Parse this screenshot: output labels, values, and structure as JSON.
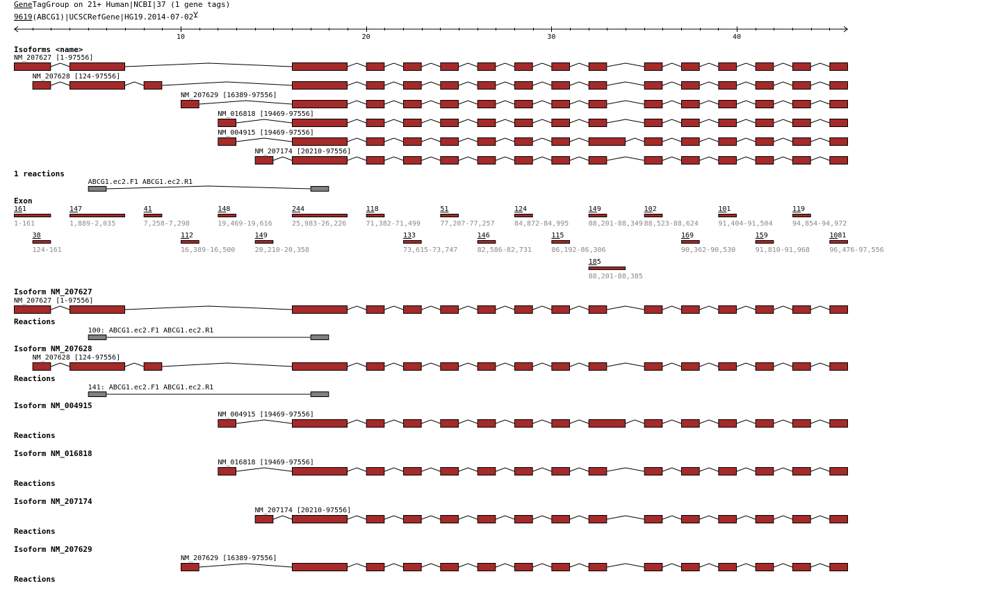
{
  "header": {
    "line1_link": "Gene",
    "line1_rest": "TagGroup on 21+ Human|NCBI|37 (1 gene tags)",
    "line2_link": "9619",
    "line2_rest": "(ABCG1)|UCSCRefGene|HG19.2014-07-02",
    "filter_icon": "filter-icon"
  },
  "ruler": {
    "slots": 45,
    "labels": [
      "10",
      "20",
      "30",
      "40"
    ],
    "label_positions": [
      10,
      20,
      30,
      40
    ]
  },
  "colors": {
    "exon": "#a52a2a",
    "reaction": "#808080",
    "range_text": "#888888"
  },
  "exons": [
    {
      "id": "e1",
      "size": "161",
      "range": "1-161",
      "slot": 0,
      "span": 2,
      "row": 0
    },
    {
      "id": "e2",
      "size": "38",
      "range": "124-161",
      "slot": 1,
      "span": 1,
      "row": 1
    },
    {
      "id": "e3",
      "size": "147",
      "range": "1,889-2,035",
      "slot": 3,
      "span": 3,
      "row": 0
    },
    {
      "id": "e4",
      "size": "41",
      "range": "7,258-7,298",
      "slot": 7,
      "span": 1,
      "row": 0
    },
    {
      "id": "e5",
      "size": "112",
      "range": "16,389-16,500",
      "slot": 9,
      "span": 1,
      "row": 1
    },
    {
      "id": "e6",
      "size": "148",
      "range": "19,469-19,616",
      "slot": 11,
      "span": 1,
      "row": 0
    },
    {
      "id": "e7",
      "size": "149",
      "range": "20,210-20,358",
      "slot": 13,
      "span": 1,
      "row": 1
    },
    {
      "id": "e8",
      "size": "244",
      "range": "25,983-26,226",
      "slot": 15,
      "span": 3,
      "row": 0
    },
    {
      "id": "e9",
      "size": "118",
      "range": "71,382-71,499",
      "slot": 19,
      "span": 1,
      "row": 0
    },
    {
      "id": "e10",
      "size": "133",
      "range": "73,615-73,747",
      "slot": 21,
      "span": 1,
      "row": 1
    },
    {
      "id": "e11",
      "size": "51",
      "range": "77,207-77,257",
      "slot": 23,
      "span": 1,
      "row": 0
    },
    {
      "id": "e12",
      "size": "146",
      "range": "82,586-82,731",
      "slot": 25,
      "span": 1,
      "row": 1
    },
    {
      "id": "e13",
      "size": "124",
      "range": "84,872-84,995",
      "slot": 27,
      "span": 1,
      "row": 0
    },
    {
      "id": "e14",
      "size": "115",
      "range": "86,192-86,306",
      "slot": 29,
      "span": 1,
      "row": 1
    },
    {
      "id": "e15",
      "size": "149",
      "range": "88,201-88,349",
      "slot": 31,
      "span": 1,
      "row": 0
    },
    {
      "id": "e16",
      "size": "185",
      "range": "88,201-88,385",
      "slot": 31,
      "span": 2,
      "row": 2
    },
    {
      "id": "e17",
      "size": "102",
      "range": "88,523-88,624",
      "slot": 34,
      "span": 1,
      "row": 0
    },
    {
      "id": "e18",
      "size": "169",
      "range": "90,362-90,530",
      "slot": 36,
      "span": 1,
      "row": 1
    },
    {
      "id": "e19",
      "size": "101",
      "range": "91,404-91,504",
      "slot": 38,
      "span": 1,
      "row": 0
    },
    {
      "id": "e20",
      "size": "159",
      "range": "91,810-91,968",
      "slot": 40,
      "span": 1,
      "row": 1
    },
    {
      "id": "e21",
      "size": "119",
      "range": "94,854-94,972",
      "slot": 42,
      "span": 1,
      "row": 0
    },
    {
      "id": "e22",
      "size": "1081",
      "range": "96,476-97,556",
      "slot": 44,
      "span": 1,
      "row": 1
    }
  ],
  "isoforms_heading": "Isoforms <name>",
  "isoforms": [
    {
      "name": "NM_207627",
      "label": "NM_207627 [1-97556]",
      "exons": [
        "e1",
        "e3",
        "e8",
        "e9",
        "e10",
        "e11",
        "e12",
        "e13",
        "e14",
        "e15",
        "e17",
        "e18",
        "e19",
        "e20",
        "e21",
        "e22"
      ]
    },
    {
      "name": "NM_207628",
      "label": "NM_207628 [124-97556]",
      "exons": [
        "e2",
        "e3",
        "e4",
        "e8",
        "e9",
        "e10",
        "e11",
        "e12",
        "e13",
        "e14",
        "e15",
        "e17",
        "e18",
        "e19",
        "e20",
        "e21",
        "e22"
      ]
    },
    {
      "name": "NM_207629",
      "label": "NM_207629 [16389-97556]",
      "exons": [
        "e5",
        "e8",
        "e9",
        "e10",
        "e11",
        "e12",
        "e13",
        "e14",
        "e15",
        "e17",
        "e18",
        "e19",
        "e20",
        "e21",
        "e22"
      ]
    },
    {
      "name": "NM_016818",
      "label": "NM_016818 [19469-97556]",
      "exons": [
        "e6",
        "e8",
        "e9",
        "e10",
        "e11",
        "e12",
        "e13",
        "e14",
        "e15",
        "e17",
        "e18",
        "e19",
        "e20",
        "e21",
        "e22"
      ]
    },
    {
      "name": "NM_004915",
      "label": "NM_004915 [19469-97556]",
      "exons": [
        "e6",
        "e8",
        "e9",
        "e10",
        "e11",
        "e12",
        "e13",
        "e14",
        "e16",
        "e17",
        "e18",
        "e19",
        "e20",
        "e21",
        "e22"
      ]
    },
    {
      "name": "NM_207174",
      "label": "NM_207174 [20210-97556]",
      "exons": [
        "e7",
        "e8",
        "e9",
        "e10",
        "e11",
        "e12",
        "e13",
        "e14",
        "e15",
        "e17",
        "e18",
        "e19",
        "e20",
        "e21",
        "e22"
      ]
    }
  ],
  "reactions_heading": "1 reactions",
  "reaction": {
    "label": "ABCG1.ec2.F1 ABCG1.ec2.R1",
    "slots": [
      4,
      16
    ]
  },
  "exon_heading": "Exon",
  "sections": [
    {
      "heading": "Isoform NM_207627",
      "isoform": 0,
      "reactions_heading": "Reactions",
      "reaction_label": "100: ABCG1.ec2.F1 ABCG1.ec2.R1"
    },
    {
      "heading": "Isoform NM_207628",
      "isoform": 1,
      "reactions_heading": "Reactions",
      "reaction_label": "141: ABCG1.ec2.F1 ABCG1.ec2.R1"
    },
    {
      "heading": "Isoform NM_004915",
      "isoform": 4,
      "reactions_heading": "Reactions"
    },
    {
      "heading": "Isoform NM_016818",
      "isoform": 3,
      "reactions_heading": "Reactions"
    },
    {
      "heading": "Isoform NM_207174",
      "isoform": 5,
      "reactions_heading": "Reactions"
    },
    {
      "heading": "Isoform NM_207629",
      "isoform": 2,
      "reactions_heading": "Reactions"
    }
  ]
}
